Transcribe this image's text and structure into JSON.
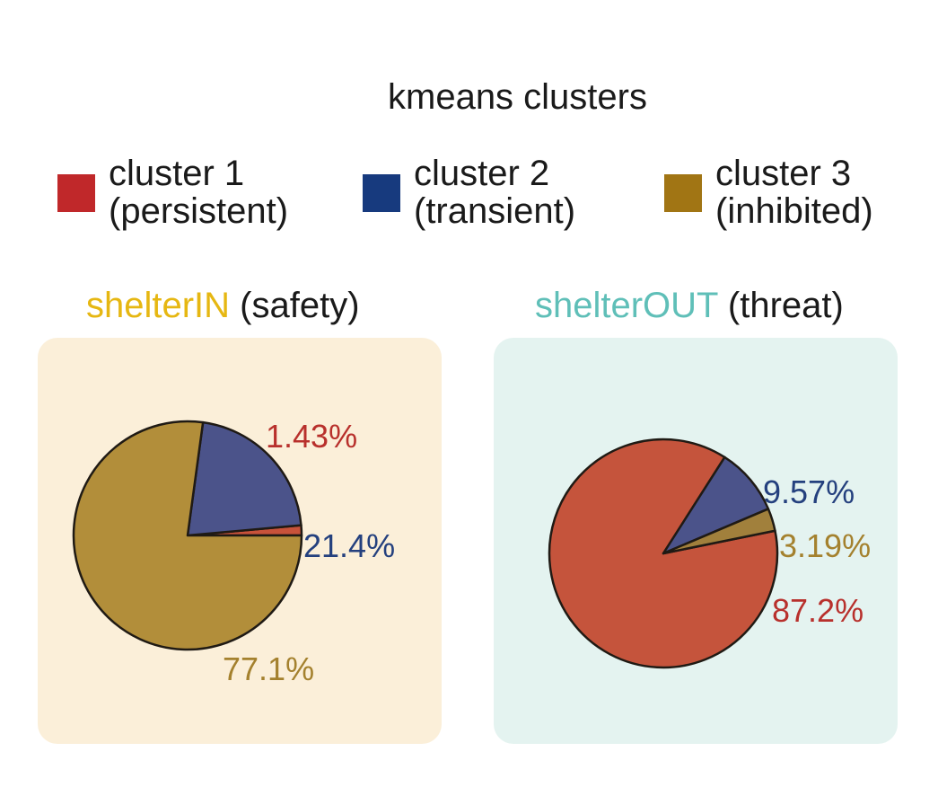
{
  "legend": {
    "title": "kmeans clusters",
    "items": [
      {
        "line1": "cluster 1",
        "line2": "(persistent)",
        "color": "#c0282a"
      },
      {
        "line1": "cluster 2",
        "line2": "(transient)",
        "color": "#173a7e"
      },
      {
        "line1": "cluster 3",
        "line2": "(inhibited)",
        "color": "#a17514"
      }
    ]
  },
  "chart_data": [
    {
      "type": "pie",
      "title_highlight": "shelterIN",
      "title_rest": " (safety)",
      "title_color": "#e6b712",
      "panel_color": "#fbefd9",
      "slices": [
        {
          "label": "cluster 1",
          "value": 1.43,
          "text": "1.43%",
          "fill": "#c8523a",
          "text_color": "#b8302c"
        },
        {
          "label": "cluster 2",
          "value": 21.4,
          "text": "21.4%",
          "fill": "#4b538a",
          "text_color": "#24407e"
        },
        {
          "label": "cluster 3",
          "value": 77.1,
          "text": "77.1%",
          "fill": "#b28e3a",
          "text_color": "#a4812e"
        }
      ]
    },
    {
      "type": "pie",
      "title_highlight": "shelterOUT",
      "title_rest": " (threat)",
      "title_color": "#5fbfb8",
      "panel_color": "#e4f3f0",
      "slices": [
        {
          "label": "cluster 1",
          "value": 87.2,
          "text": "87.2%",
          "fill": "#c5543c",
          "text_color": "#b8302c"
        },
        {
          "label": "cluster 2",
          "value": 9.57,
          "text": "9.57%",
          "fill": "#4b538a",
          "text_color": "#24407e"
        },
        {
          "label": "cluster 3",
          "value": 3.19,
          "text": "3.19%",
          "fill": "#a1803c",
          "text_color": "#a4812e"
        }
      ]
    }
  ]
}
